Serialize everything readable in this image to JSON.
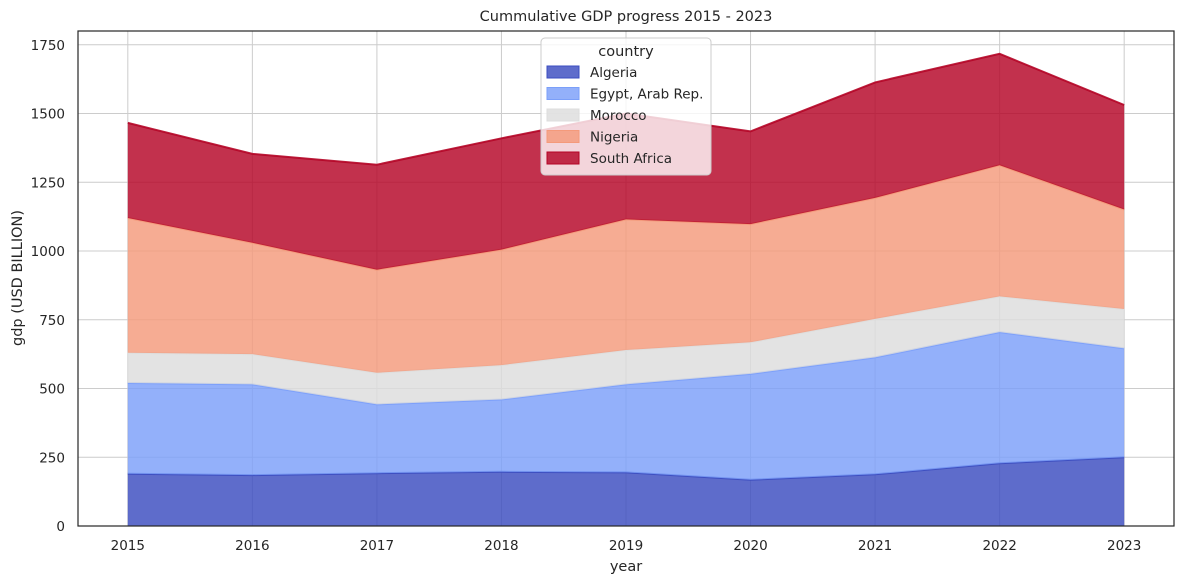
{
  "chart_data": {
    "type": "area",
    "stacked": true,
    "title": "Cummulative GDP progress 2015 - 2023",
    "xlabel": "year",
    "ylabel": "gdp (USD BILLION)",
    "x": [
      2015,
      2016,
      2017,
      2018,
      2019,
      2020,
      2021,
      2022,
      2023
    ],
    "xticks": [
      "2015",
      "2016",
      "2017",
      "2018",
      "2019",
      "2020",
      "2021",
      "2022",
      "2023"
    ],
    "yticks": [
      0,
      250,
      500,
      750,
      1000,
      1250,
      1500,
      1750
    ],
    "ytick_labels": [
      "0",
      "250",
      "500",
      "750",
      "1000",
      "1250",
      "1500",
      "1750"
    ],
    "ylim": [
      0,
      1800
    ],
    "grid": true,
    "legend": {
      "title": "country",
      "placement": "upper-center"
    },
    "series": [
      {
        "name": "Algeria",
        "color": "#3b4cc0",
        "values": [
          190,
          185,
          192,
          197,
          195,
          168,
          188,
          228,
          250
        ]
      },
      {
        "name": "Egypt, Arab Rep.",
        "color": "#7b9ff9",
        "values": [
          330,
          330,
          250,
          263,
          320,
          385,
          425,
          477,
          396
        ]
      },
      {
        "name": "Morocco",
        "color": "#dddddd",
        "values": [
          110,
          110,
          115,
          125,
          125,
          115,
          140,
          130,
          143
        ]
      },
      {
        "name": "Nigeria",
        "color": "#f49a7b",
        "values": [
          490,
          405,
          375,
          420,
          475,
          430,
          440,
          477,
          362
        ]
      },
      {
        "name": "South Africa",
        "color": "#b40426",
        "values": [
          346,
          323,
          382,
          405,
          385,
          337,
          420,
          405,
          380
        ]
      }
    ]
  }
}
